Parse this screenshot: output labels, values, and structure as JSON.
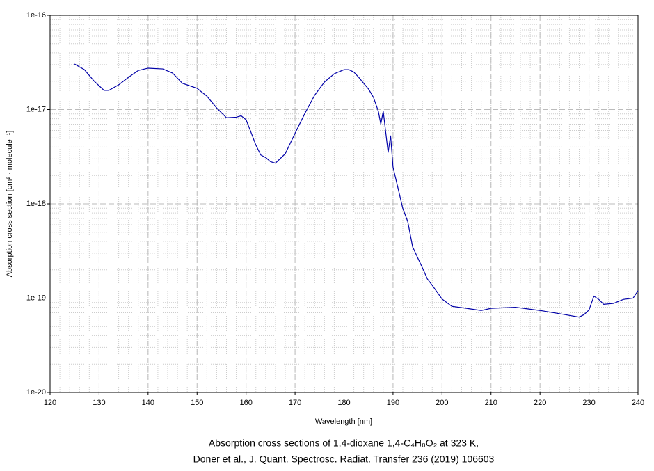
{
  "chart_data": {
    "type": "line",
    "xlabel": "Wavelength [nm]",
    "ylabel": "Absorption cross section [cm² · molecule⁻¹]",
    "caption": [
      "Absorption cross sections of 1,4-dioxane 1,4-C₄H₈O₂ at 323 K,",
      "Doner et al., J. Quant. Spectrosc. Radiat. Transfer 236 (2019) 106603"
    ],
    "xlim": [
      120,
      240
    ],
    "xticks": [
      120,
      130,
      140,
      150,
      160,
      170,
      180,
      190,
      200,
      210,
      220,
      230,
      240
    ],
    "ylim": [
      1e-20,
      1e-16
    ],
    "yscale": "log",
    "yticks": [
      {
        "value": 1e-20,
        "label": "1e-20"
      },
      {
        "value": 1e-19,
        "label": "1e-19"
      },
      {
        "value": 1e-18,
        "label": "1e-18"
      },
      {
        "value": 1e-17,
        "label": "1e-17"
      },
      {
        "value": 1e-16,
        "label": "1e-16"
      }
    ],
    "grid": true,
    "series": [
      {
        "color": "#0000a8",
        "x": [
          125,
          127,
          129,
          131,
          132,
          134,
          136,
          138,
          140,
          143,
          145,
          147,
          150,
          152,
          154,
          156,
          158,
          159,
          160,
          161,
          162,
          163,
          164,
          165,
          166,
          168,
          170,
          172,
          174,
          176,
          178,
          180,
          181,
          182,
          183,
          184,
          185,
          186,
          187,
          187.5,
          188,
          188.5,
          189,
          189.5,
          190,
          190.5,
          191,
          192,
          193,
          194,
          195,
          196,
          197,
          198,
          200,
          202,
          205,
          208,
          210,
          215,
          220,
          225,
          228,
          229,
          230,
          231,
          232,
          233,
          235,
          237,
          239,
          240
        ],
        "values": [
          3.04e-17,
          2.65e-17,
          2e-17,
          1.6e-17,
          1.6e-17,
          1.83e-17,
          2.2e-17,
          2.6e-17,
          2.75e-17,
          2.7e-17,
          2.44e-17,
          1.9e-17,
          1.68e-17,
          1.39e-17,
          1.04e-17,
          8.2e-18,
          8.3e-18,
          8.6e-18,
          7.8e-18,
          5.75e-18,
          4.2e-18,
          3.3e-18,
          3.1e-18,
          2.8e-18,
          2.7e-18,
          3.4e-18,
          5.6e-18,
          9.1e-18,
          1.42e-17,
          1.96e-17,
          2.4e-17,
          2.65e-17,
          2.65e-17,
          2.5e-17,
          2.2e-17,
          1.9e-17,
          1.65e-17,
          1.35e-17,
          9.6e-18,
          7e-18,
          9.6e-18,
          5.8e-18,
          3.5e-18,
          5.3e-18,
          2.45e-18,
          1.9e-18,
          1.48e-18,
          8.9e-19,
          6.5e-19,
          3.5e-19,
          2.7e-19,
          2.1e-19,
          1.6e-19,
          1.37e-19,
          9.8e-20,
          8.2e-20,
          7.8e-20,
          7.4e-20,
          7.8e-20,
          8e-20,
          7.4e-20,
          6.7e-20,
          6.3e-20,
          6.7e-20,
          7.5e-20,
          1.05e-19,
          9.7e-20,
          8.6e-20,
          8.8e-20,
          9.7e-20,
          1e-19,
          1.2e-19
        ]
      }
    ]
  }
}
